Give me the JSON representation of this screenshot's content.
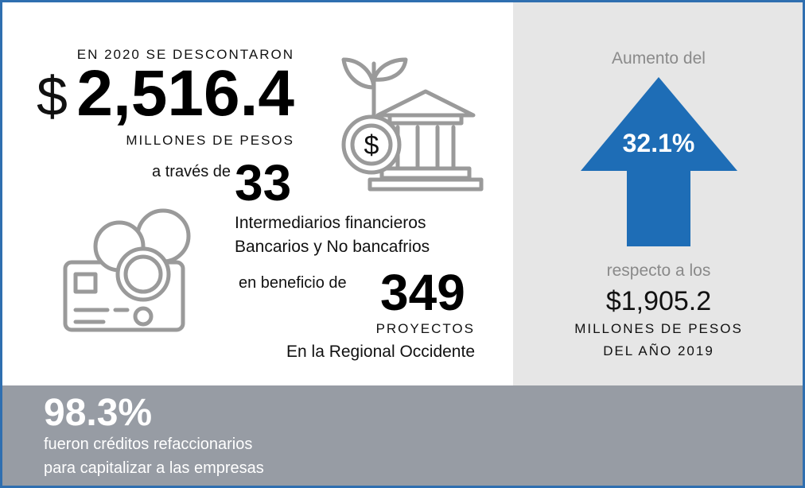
{
  "headline": {
    "intro": "EN 2020 SE DESCONTARON",
    "currency": "$",
    "amount": "2,516.4",
    "unit": "MILLONES DE PESOS"
  },
  "intermediaries": {
    "prefix": "a través de",
    "count": "33",
    "line1": "Intermediarios financieros",
    "line2": "Bancarios y No bancafrios"
  },
  "projects": {
    "prefix": "en beneficio de",
    "count": "349",
    "unit": "PROYECTOS",
    "region": "En la Regional Occidente"
  },
  "increase": {
    "label": "Aumento del",
    "percent": "32.1%",
    "compare": "respecto a los",
    "previous": "$1,905.2",
    "unit": "MILLONES DE PESOS",
    "year": "DEL AÑO 2019"
  },
  "footer": {
    "percent": "98.3%",
    "line1": "fueron créditos refaccionarios",
    "line2": "para capitalizar a las empresas"
  }
}
